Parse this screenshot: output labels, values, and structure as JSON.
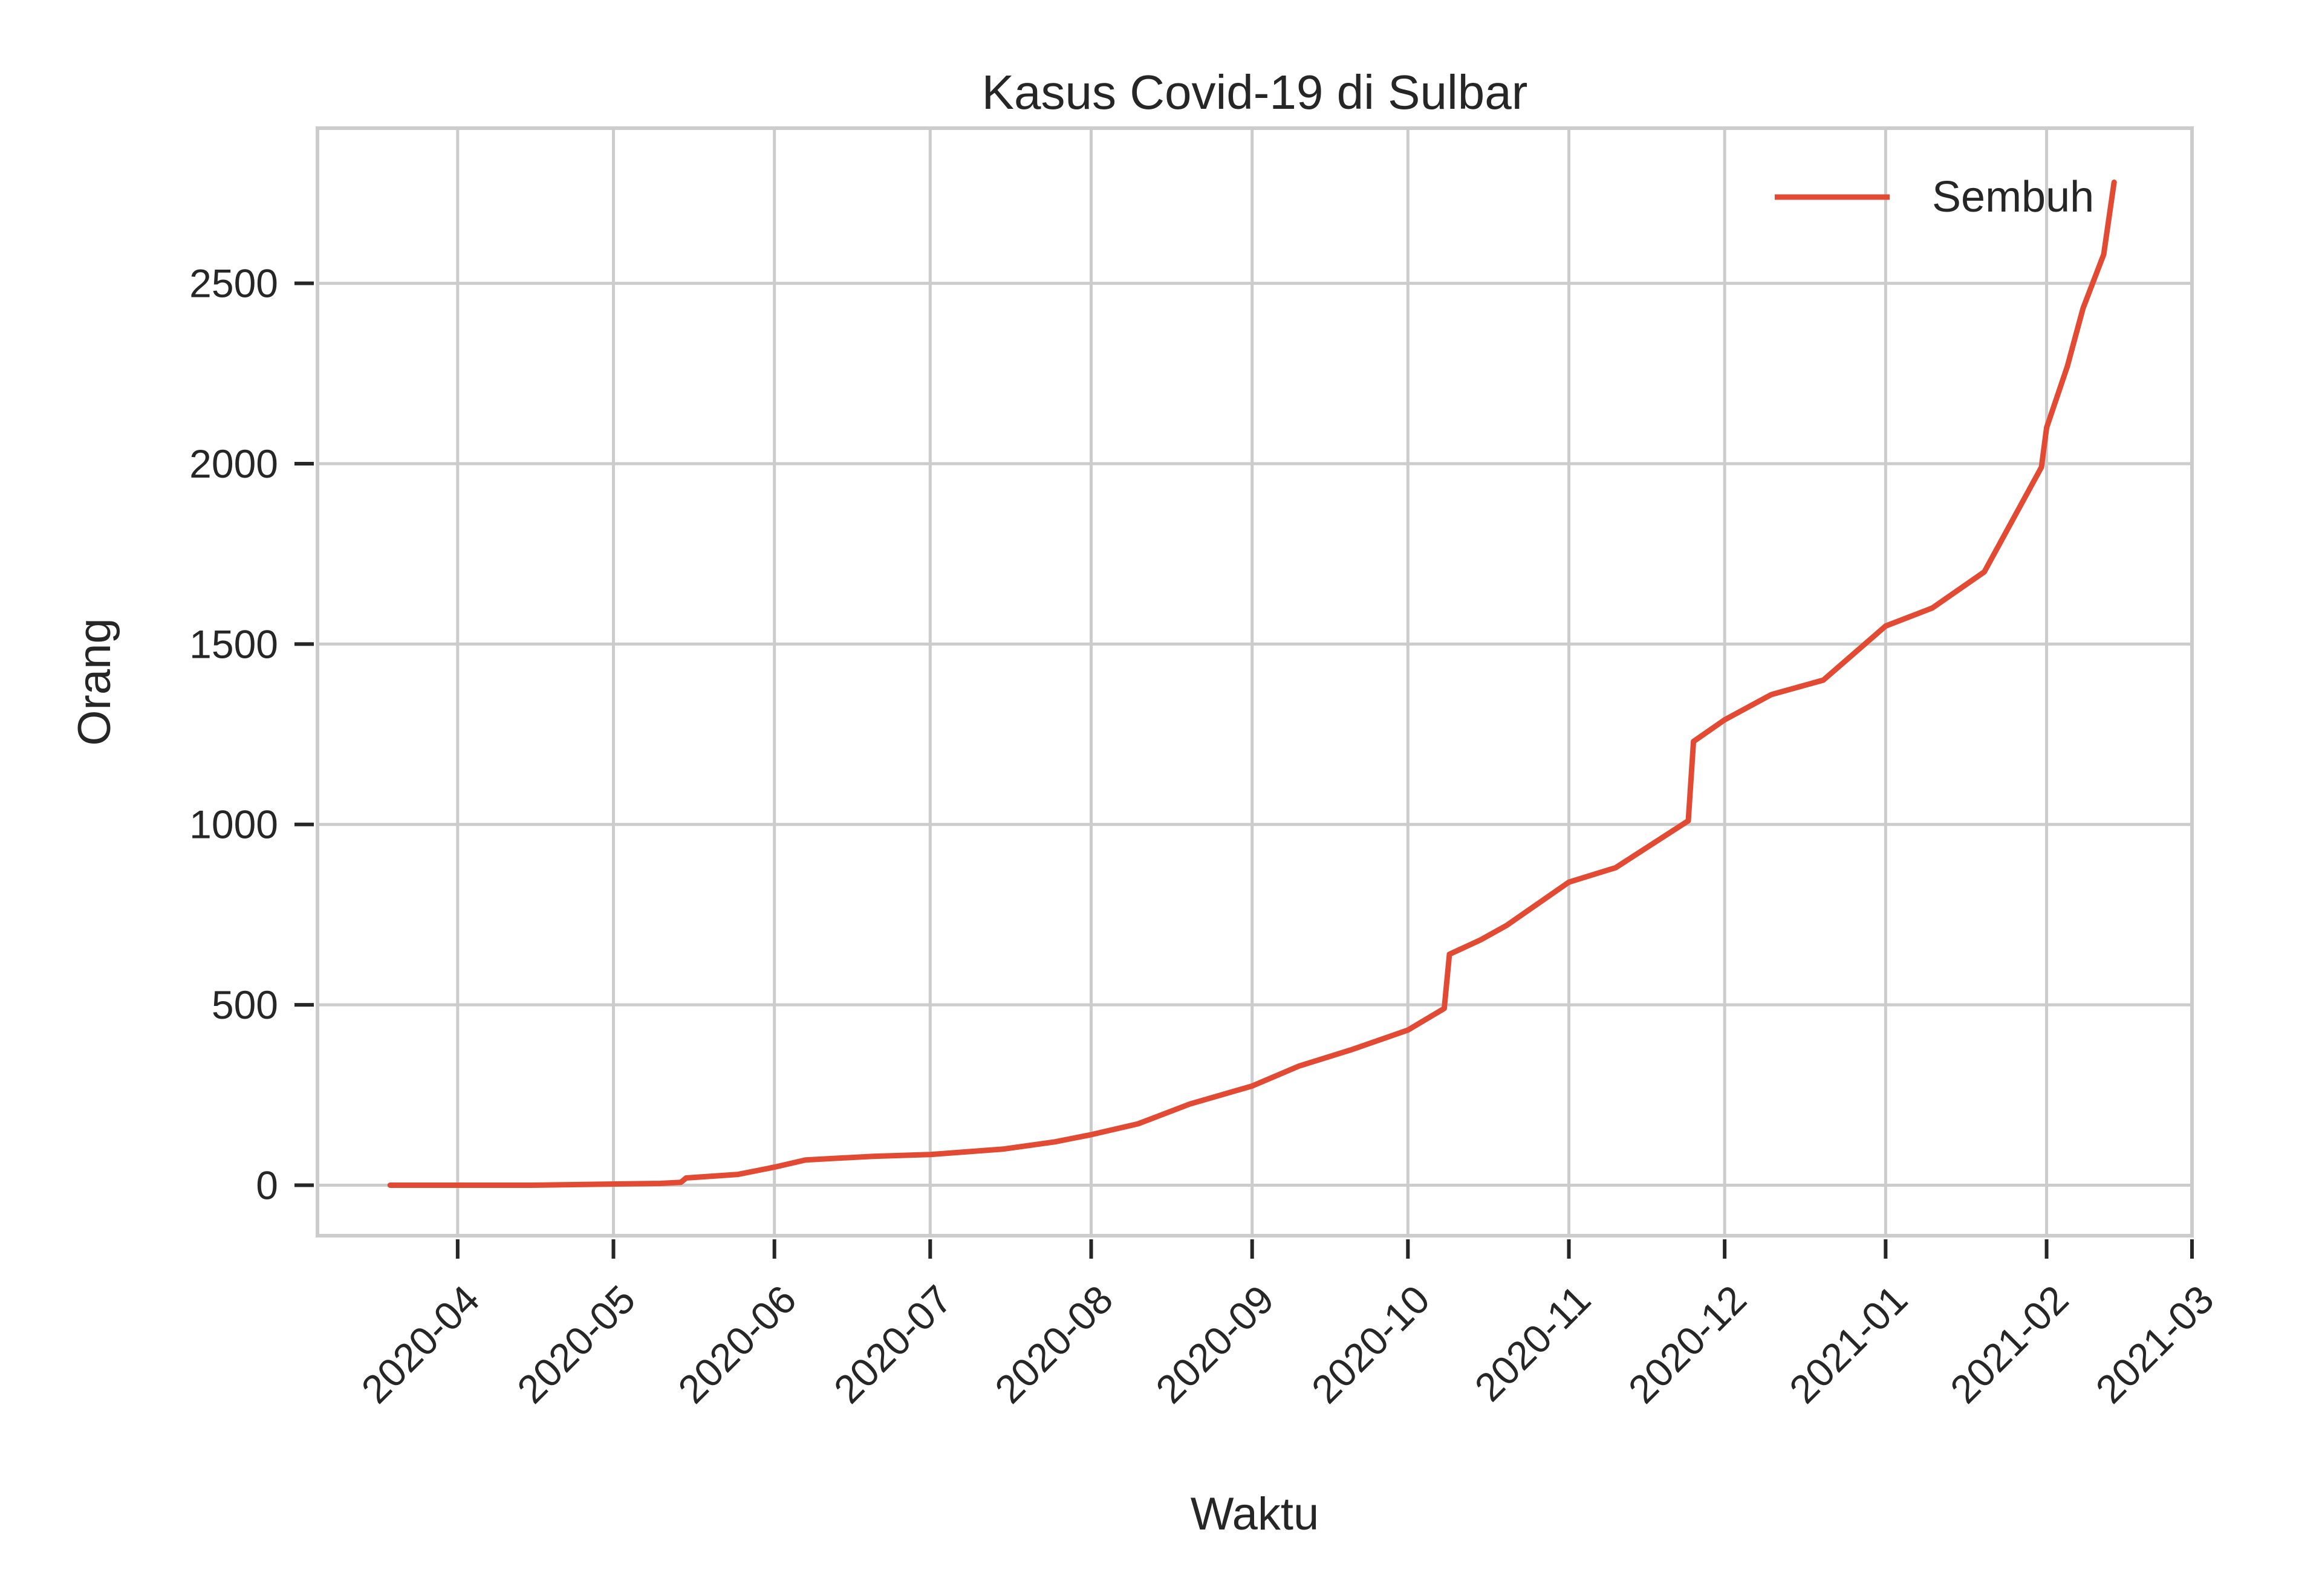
{
  "chart_data": {
    "type": "line",
    "title": "Kasus Covid-19 di Sulbar",
    "xlabel": "Waktu",
    "ylabel": "Orang",
    "grid": true,
    "legend_position": "top-right",
    "x_range": [
      "2020-03-05",
      "2021-03-01"
    ],
    "ylim": [
      -140,
      2930
    ],
    "y_ticks": [
      0,
      500,
      1000,
      1500,
      2000,
      2500
    ],
    "x_ticks": [
      "2020-04",
      "2020-05",
      "2020-06",
      "2020-07",
      "2020-08",
      "2020-09",
      "2020-10",
      "2020-11",
      "2020-12",
      "2021-01",
      "2021-02",
      "2021-03"
    ],
    "series": [
      {
        "name": "Sembuh",
        "color": "#e24a33",
        "x": [
          "2020-03-19",
          "2020-04-15",
          "2020-05-10",
          "2020-05-14",
          "2020-05-15",
          "2020-05-25",
          "2020-06-01",
          "2020-06-07",
          "2020-06-20",
          "2020-07-01",
          "2020-07-15",
          "2020-07-25",
          "2020-08-01",
          "2020-08-10",
          "2020-08-20",
          "2020-09-01",
          "2020-09-10",
          "2020-09-20",
          "2020-10-01",
          "2020-10-08",
          "2020-10-09",
          "2020-10-15",
          "2020-10-20",
          "2020-11-01",
          "2020-11-10",
          "2020-11-24",
          "2020-11-25",
          "2020-12-01",
          "2020-12-10",
          "2020-12-20",
          "2021-01-01",
          "2021-01-10",
          "2021-01-20",
          "2021-01-31",
          "2021-02-01",
          "2021-02-05",
          "2021-02-08",
          "2021-02-12",
          "2021-02-14"
        ],
        "y": [
          0,
          0,
          5,
          8,
          20,
          30,
          50,
          70,
          80,
          85,
          100,
          120,
          140,
          170,
          225,
          275,
          330,
          375,
          430,
          490,
          640,
          680,
          720,
          840,
          880,
          1010,
          1230,
          1290,
          1360,
          1400,
          1550,
          1600,
          1700,
          1990,
          2100,
          2270,
          2430,
          2580,
          2780
        ]
      }
    ]
  }
}
